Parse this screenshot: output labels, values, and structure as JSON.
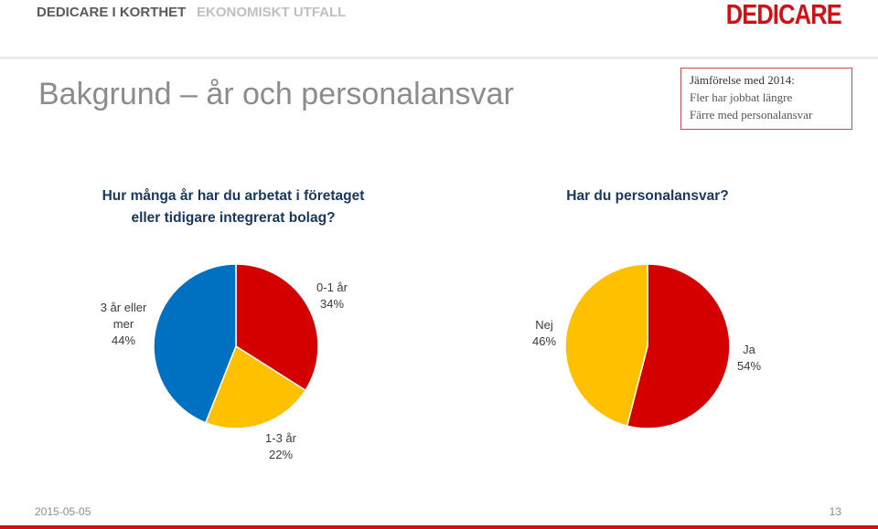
{
  "nav": {
    "tab1": "DEDICARE I KORTHET",
    "tab2": "EKONOMISKT UTFALL"
  },
  "logo": "DEDICARE",
  "title": "Bakgrund – år och personalansvar",
  "callout": {
    "heading": "Jämförelse med 2014:",
    "line1": "Fler har jobbat längre",
    "line2": "Färre med personalansvar"
  },
  "footer": {
    "date": "2015-05-05",
    "page": "13"
  },
  "colors": {
    "red": "#d40000",
    "yellow": "#ffc000",
    "blue": "#0070c0",
    "accent": "#d10f15"
  },
  "chart_data": [
    {
      "type": "pie",
      "title_line1": "Hur många år har du arbetat i företaget",
      "title_line2": "eller tidigare integrerat bolag?",
      "slices": [
        {
          "label": "0-1 år",
          "value": 34,
          "text": "34%",
          "color": "#d40000"
        },
        {
          "label": "1-3 år",
          "value": 22,
          "text": "22%",
          "color": "#ffc000"
        },
        {
          "label_line1": "3 år eller",
          "label_line2": "mer",
          "value": 44,
          "text": "44%",
          "color": "#0070c0"
        }
      ]
    },
    {
      "type": "pie",
      "title": "Har du personalansvar?",
      "slices": [
        {
          "label": "Ja",
          "value": 54,
          "text": "54%",
          "color": "#d40000"
        },
        {
          "label": "Nej",
          "value": 46,
          "text": "46%",
          "color": "#ffc000"
        }
      ]
    }
  ]
}
